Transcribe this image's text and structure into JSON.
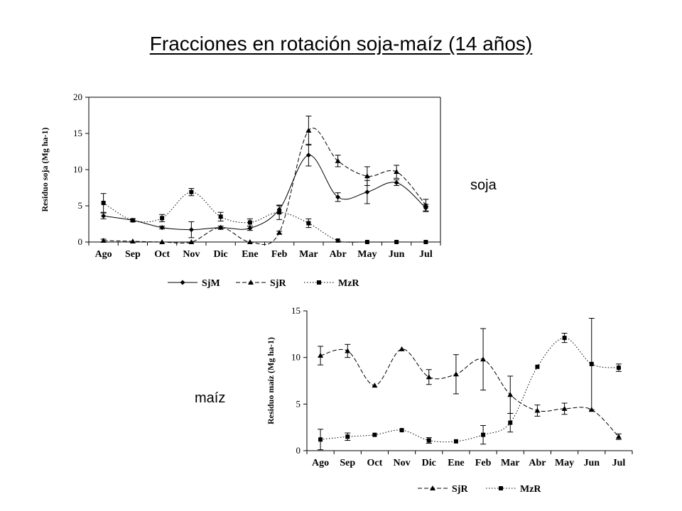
{
  "slide": {
    "title": "Fracciones en rotación soja-maíz (14 años)",
    "label_soja": "soja",
    "label_maiz": "maíz"
  },
  "chart_data": [
    {
      "type": "line",
      "name": "soja",
      "ylabel": "Residuo soja (Mg ha-1)",
      "ylim": [
        0,
        20
      ],
      "yticks": [
        0,
        5,
        10,
        15,
        20
      ],
      "categories": [
        "Ago",
        "Sep",
        "Oct",
        "Nov",
        "Dic",
        "Ene",
        "Feb",
        "Mar",
        "Abr",
        "May",
        "Jun",
        "Jul"
      ],
      "grid": false,
      "legend_position": "bottom",
      "series": [
        {
          "name": "SjM",
          "style": "solid",
          "marker": "diamond",
          "color": "#000000",
          "values": [
            3.6,
            3.0,
            2.0,
            1.7,
            2.0,
            1.9,
            4.5,
            12.0,
            6.2,
            6.9,
            8.2,
            4.7
          ],
          "errors": [
            0.4,
            0.2,
            0.2,
            1.1,
            0.2,
            0.3,
            0.5,
            1.5,
            0.6,
            1.6,
            0.4,
            0.5
          ]
        },
        {
          "name": "SjR",
          "style": "dashed",
          "marker": "triangle",
          "color": "#000000",
          "values": [
            0.2,
            0.1,
            0.0,
            0.0,
            2.0,
            0.0,
            1.3,
            15.4,
            11.2,
            9.1,
            9.7,
            5.1
          ],
          "errors": [
            0.2,
            0.1,
            0.1,
            0.1,
            0.1,
            0.1,
            0.2,
            2.0,
            0.8,
            1.3,
            0.9,
            0.8
          ]
        },
        {
          "name": "MzR",
          "style": "dotted",
          "marker": "square",
          "color": "#000000",
          "values": [
            5.4,
            3.0,
            3.3,
            6.9,
            3.5,
            2.7,
            4.1,
            2.6,
            0.2,
            0.0,
            0.0,
            0.0
          ],
          "errors": [
            1.3,
            0.2,
            0.5,
            0.5,
            0.6,
            0.5,
            1.0,
            0.6,
            0.1,
            0.1,
            0.1,
            0.1
          ]
        }
      ]
    },
    {
      "type": "line",
      "name": "maiz",
      "ylabel": "Residuo maíz (Mg ha-1)",
      "ylim": [
        0,
        15
      ],
      "yticks": [
        0,
        5,
        10,
        15
      ],
      "categories": [
        "Ago",
        "Sep",
        "Oct",
        "Nov",
        "Dic",
        "Ene",
        "Feb",
        "Mar",
        "Abr",
        "May",
        "Jun",
        "Jul"
      ],
      "grid": false,
      "legend_position": "bottom",
      "series": [
        {
          "name": "SjR",
          "style": "dashed",
          "marker": "triangle",
          "color": "#000000",
          "values": [
            10.2,
            10.7,
            7.0,
            10.9,
            7.9,
            8.2,
            9.8,
            6.0,
            4.3,
            4.5,
            4.4,
            1.5
          ],
          "errors": [
            1.0,
            0.7,
            0.1,
            0.1,
            0.8,
            2.1,
            3.3,
            2.0,
            0.6,
            0.6,
            0.1,
            0.3
          ]
        },
        {
          "name": "MzR",
          "style": "dotted",
          "marker": "square",
          "color": "#000000",
          "values": [
            1.2,
            1.5,
            1.7,
            2.2,
            1.1,
            1.0,
            1.7,
            3.0,
            9.0,
            12.1,
            9.3,
            8.9
          ],
          "errors": [
            1.1,
            0.4,
            0.1,
            0.1,
            0.3,
            0.1,
            1.0,
            1.0,
            0.1,
            0.5,
            4.9,
            0.4
          ]
        }
      ]
    }
  ]
}
